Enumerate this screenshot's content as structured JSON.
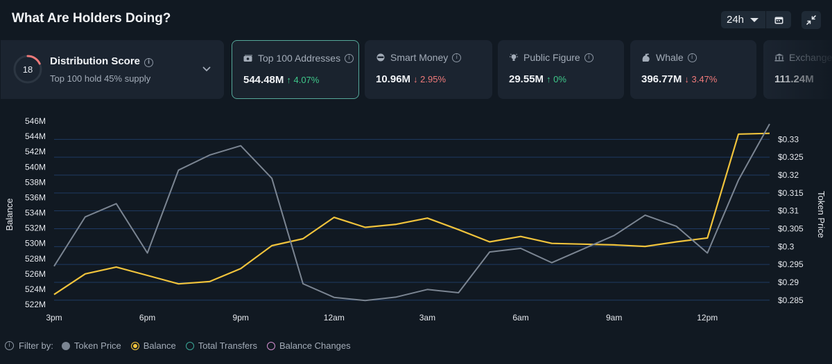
{
  "header": {
    "title": "What Are Holders Doing?"
  },
  "controls": {
    "time_range": "24h"
  },
  "distribution": {
    "score": "18",
    "score_fraction": 0.18,
    "title": "Distribution Score",
    "subtitle": "Top 100 hold 45% supply"
  },
  "metrics": [
    {
      "label": "Top 100 Addresses",
      "value": "544.48M",
      "change": "↑ 4.07%",
      "dir": "up"
    },
    {
      "label": "Smart Money",
      "value": "10.96M",
      "change": "↓ 2.95%",
      "dir": "down"
    },
    {
      "label": "Public Figure",
      "value": "29.55M",
      "change": "↑ 0%",
      "dir": "up"
    },
    {
      "label": "Whale",
      "value": "396.77M",
      "change": "↓ 3.47%",
      "dir": "down"
    },
    {
      "label": "Exchange",
      "value": "111.24M",
      "change": "",
      "dir": "up"
    }
  ],
  "colors": {
    "balance": "#f0c33c",
    "price": "#7b8592",
    "grid": "#1f3a63",
    "accent": "#56a89a"
  },
  "chart_data": {
    "type": "line",
    "x": [
      "3pm",
      "4pm",
      "5pm",
      "6pm",
      "7pm",
      "8pm",
      "9pm",
      "10pm",
      "11pm",
      "12am",
      "1am",
      "2am",
      "3am",
      "4am",
      "5am",
      "6am",
      "7am",
      "8am",
      "9am",
      "10am",
      "11am",
      "12pm",
      "1pm",
      "2pm"
    ],
    "x_tick_labels": [
      "3pm",
      "6pm",
      "9pm",
      "12am",
      "3am",
      "6am",
      "9am",
      "12pm"
    ],
    "series": [
      {
        "name": "Balance",
        "axis": "left",
        "values": [
          523.3,
          526,
          526.9,
          525.8,
          524.7,
          525,
          526.7,
          529.7,
          530.6,
          533.4,
          532.1,
          532.5,
          533.3,
          531.8,
          530.2,
          530.9,
          530.0,
          529.9,
          529.8,
          529.6,
          530.2,
          530.7,
          544.3,
          544.4
        ]
      },
      {
        "name": "Token Price",
        "axis": "right",
        "values": [
          0.2945,
          0.3083,
          0.312,
          0.2982,
          0.3214,
          0.3256,
          0.3282,
          0.3191,
          0.2896,
          0.2858,
          0.2849,
          0.2859,
          0.288,
          0.2871,
          0.2985,
          0.2995,
          0.2955,
          0.2993,
          0.3031,
          0.3088,
          0.3057,
          0.2982,
          0.3186,
          0.3343
        ]
      }
    ],
    "ylabel_left": "Balance",
    "ylabel_right": "Token Price",
    "yticks_left": [
      "546M",
      "544M",
      "542M",
      "540M",
      "538M",
      "536M",
      "534M",
      "532M",
      "530M",
      "528M",
      "526M",
      "524M",
      "522M"
    ],
    "yticks_left_values": [
      546,
      544,
      542,
      540,
      538,
      536,
      534,
      532,
      530,
      528,
      526,
      524,
      522
    ],
    "ylim_left": [
      522,
      546
    ],
    "yticks_right": [
      "$0.33",
      "$0.325",
      "$0.32",
      "$0.315",
      "$0.31",
      "$0.305",
      "$0.3",
      "$0.295",
      "$0.29",
      "$0.285"
    ],
    "yticks_right_values": [
      0.33,
      0.325,
      0.32,
      0.315,
      0.31,
      0.305,
      0.3,
      0.295,
      0.29,
      0.285
    ],
    "ylim_right": [
      0.2838,
      0.3351
    ]
  },
  "filter": {
    "label": "Filter by:",
    "items": [
      {
        "label": "Token Price",
        "color": "#7b8592",
        "style": "fill"
      },
      {
        "label": "Balance",
        "color": "#f0c33c",
        "style": "ring-fill"
      },
      {
        "label": "Total Transfers",
        "color": "#3aa898",
        "style": "ring"
      },
      {
        "label": "Balance Changes",
        "color": "#d48fd0",
        "style": "ring"
      }
    ]
  }
}
